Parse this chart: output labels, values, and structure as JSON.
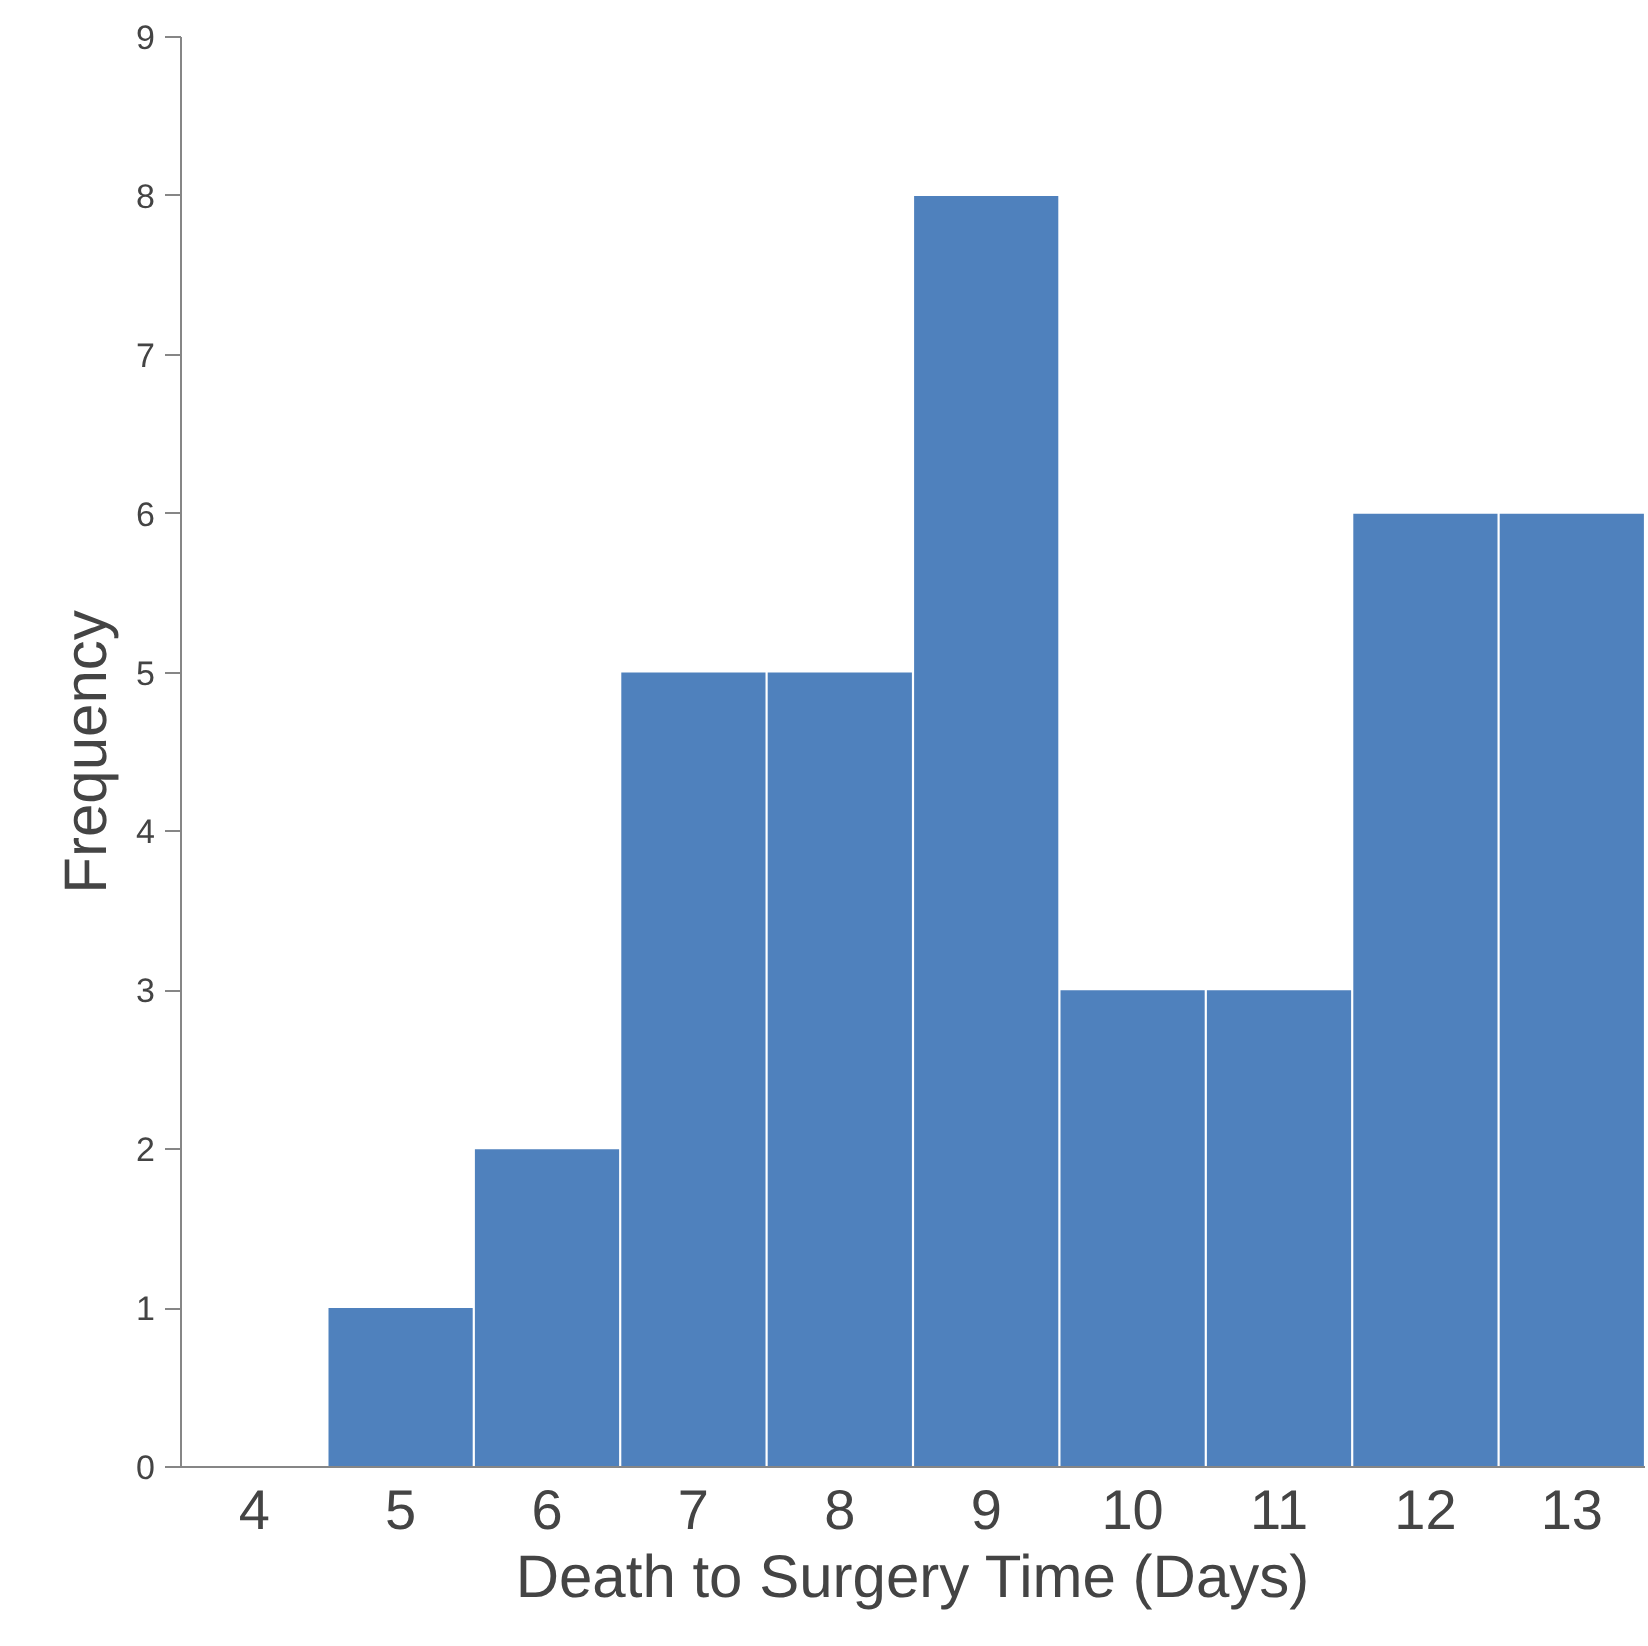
{
  "chart_data": {
    "type": "bar",
    "xlabel": "Death to Surgery Time (Days)",
    "ylabel": "Frequency",
    "categories": [
      "4",
      "5",
      "6",
      "7",
      "8",
      "9",
      "10",
      "11",
      "12",
      "13"
    ],
    "values": [
      0,
      1,
      2,
      5,
      5,
      8,
      3,
      3,
      6,
      6
    ],
    "color": "#4f81bd",
    "ylim": [
      0,
      9
    ],
    "yticks": [
      0,
      1,
      2,
      3,
      4,
      5,
      6,
      7,
      8,
      9
    ],
    "grid": false
  }
}
